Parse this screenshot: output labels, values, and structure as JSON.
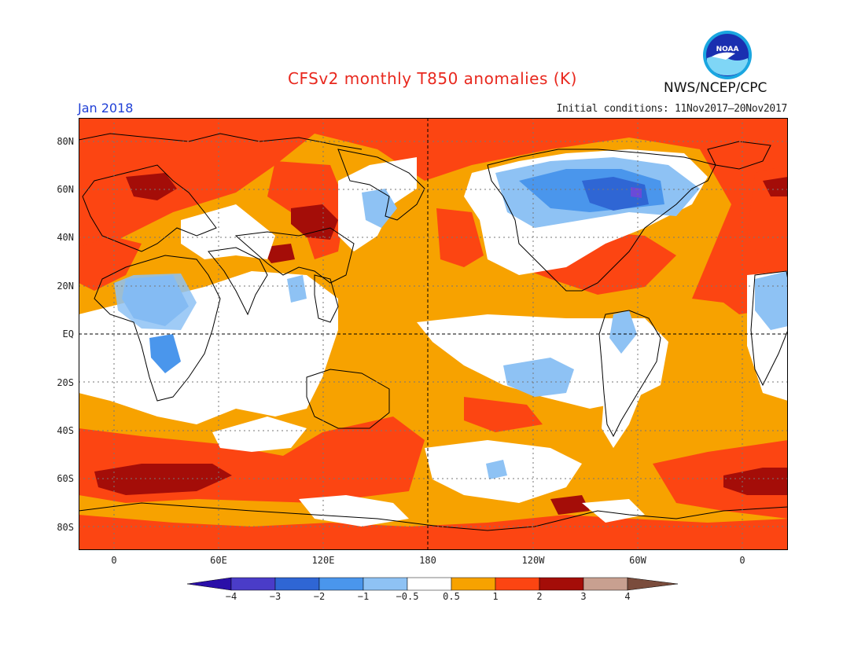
{
  "header": {
    "title": "CFSv2 monthly T850 anomalies (K)",
    "month": "Jan 2018",
    "initial_conditions": "Initial conditions: 11Nov2017–20Nov2017",
    "agency": "NWS/NCEP/CPC",
    "logo_text": "NOAA"
  },
  "axes": {
    "lat_labels": [
      "80N",
      "60N",
      "40N",
      "20N",
      "EQ",
      "20S",
      "40S",
      "60S",
      "80S"
    ],
    "lon_labels": [
      "0",
      "60E",
      "120E",
      "180",
      "120W",
      "60W",
      "0"
    ]
  },
  "legend": {
    "labels": [
      "−4",
      "−3",
      "−2",
      "−1",
      "−0.5",
      "0.5",
      "1",
      "2",
      "3",
      "4"
    ],
    "colors": [
      "#2a0fa8",
      "#4a3cc8",
      "#2f66d4",
      "#4a96ec",
      "#8ec2f4",
      "#ffffff",
      "#f7a200",
      "#fc4512",
      "#a40d08",
      "#c8a090",
      "#7a4c3c"
    ]
  },
  "palette": {
    "ocean_default": "#f7a200",
    "warm": "#fc4512",
    "hot": "#a40d08",
    "neutral": "#ffffff",
    "cool": "#8ec2f4",
    "cold": "#4a96ec",
    "colder": "#2f66d4",
    "coldest": "#6a4ad8"
  }
}
